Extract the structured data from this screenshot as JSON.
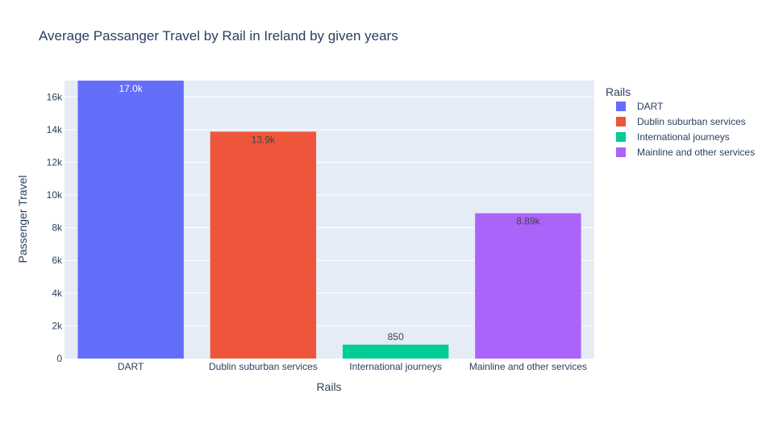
{
  "chart_data": {
    "type": "bar",
    "title": "Average Passanger Travel by Rail in Ireland by given years",
    "xlabel": "Rails",
    "ylabel": "Passenger Travel",
    "ylim": [
      0,
      17000
    ],
    "yticks": [
      0,
      2000,
      4000,
      6000,
      8000,
      10000,
      12000,
      14000,
      16000
    ],
    "ytick_labels": [
      "0",
      "2k",
      "4k",
      "6k",
      "8k",
      "10k",
      "12k",
      "14k",
      "16k"
    ],
    "categories": [
      "DART",
      "Dublin suburban services",
      "International journeys",
      "Mainline and other services"
    ],
    "values": [
      16995,
      13875,
      850,
      8885
    ],
    "data_labels": [
      "17.0k",
      "13.9k",
      "850",
      "8.89k"
    ],
    "label_positions": [
      "inside",
      "inside",
      "outside",
      "inside"
    ],
    "label_colors": [
      "#ffffff",
      "#444444",
      "#444444",
      "#444444"
    ],
    "colors": [
      "#636efa",
      "#EF553B",
      "#00cc96",
      "#ab63fa"
    ],
    "grid": true,
    "legend": {
      "title": "Rails",
      "position": "right",
      "entries": [
        "DART",
        "Dublin suburban services",
        "International journeys",
        "Mainline and other services"
      ]
    },
    "plot_bgcolor": "#E5ECF6"
  }
}
